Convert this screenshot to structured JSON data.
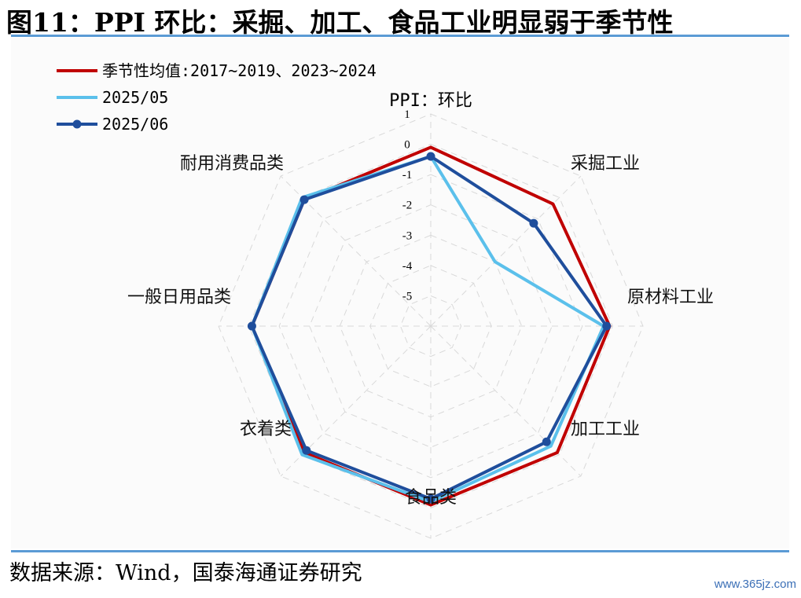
{
  "header": {
    "title": "图11：PPI 环比：采掘、加工、食品工业明显弱于季节性",
    "rule_color": "#5b9bd5"
  },
  "footer": {
    "source": "数据来源：Wind，国泰海通证券研究",
    "watermark": "www.365jz.com"
  },
  "chart_data": {
    "type": "radar",
    "title": "PPI：环比",
    "categories": [
      "PPI：环比",
      "采掘工业",
      "原材料工业",
      "加工工业",
      "食品类",
      "衣着类",
      "一般日用品类",
      "耐用消费品类"
    ],
    "ticks": [
      1,
      0,
      -1,
      -2,
      -3,
      -4,
      -5
    ],
    "rlim": [
      -6,
      1
    ],
    "grid": true,
    "legend_position": "top-left",
    "series": [
      {
        "name": "季节性均值:2017~2019、2023~2024",
        "color": "#c00000",
        "markers": false,
        "values": [
          -0.1,
          -0.3,
          -0.1,
          -0.1,
          -0.1,
          -0.1,
          -0.1,
          -0.1
        ]
      },
      {
        "name": "2025/05",
        "color": "#5bc0eb",
        "markers": false,
        "values": [
          -0.4,
          -3.0,
          -0.3,
          -0.4,
          -0.2,
          0.0,
          -0.1,
          0.0
        ]
      },
      {
        "name": "2025/06",
        "color": "#1f4e9c",
        "markers": true,
        "values": [
          -0.4,
          -1.2,
          -0.2,
          -0.6,
          -0.3,
          -0.2,
          -0.1,
          -0.1
        ]
      }
    ]
  }
}
